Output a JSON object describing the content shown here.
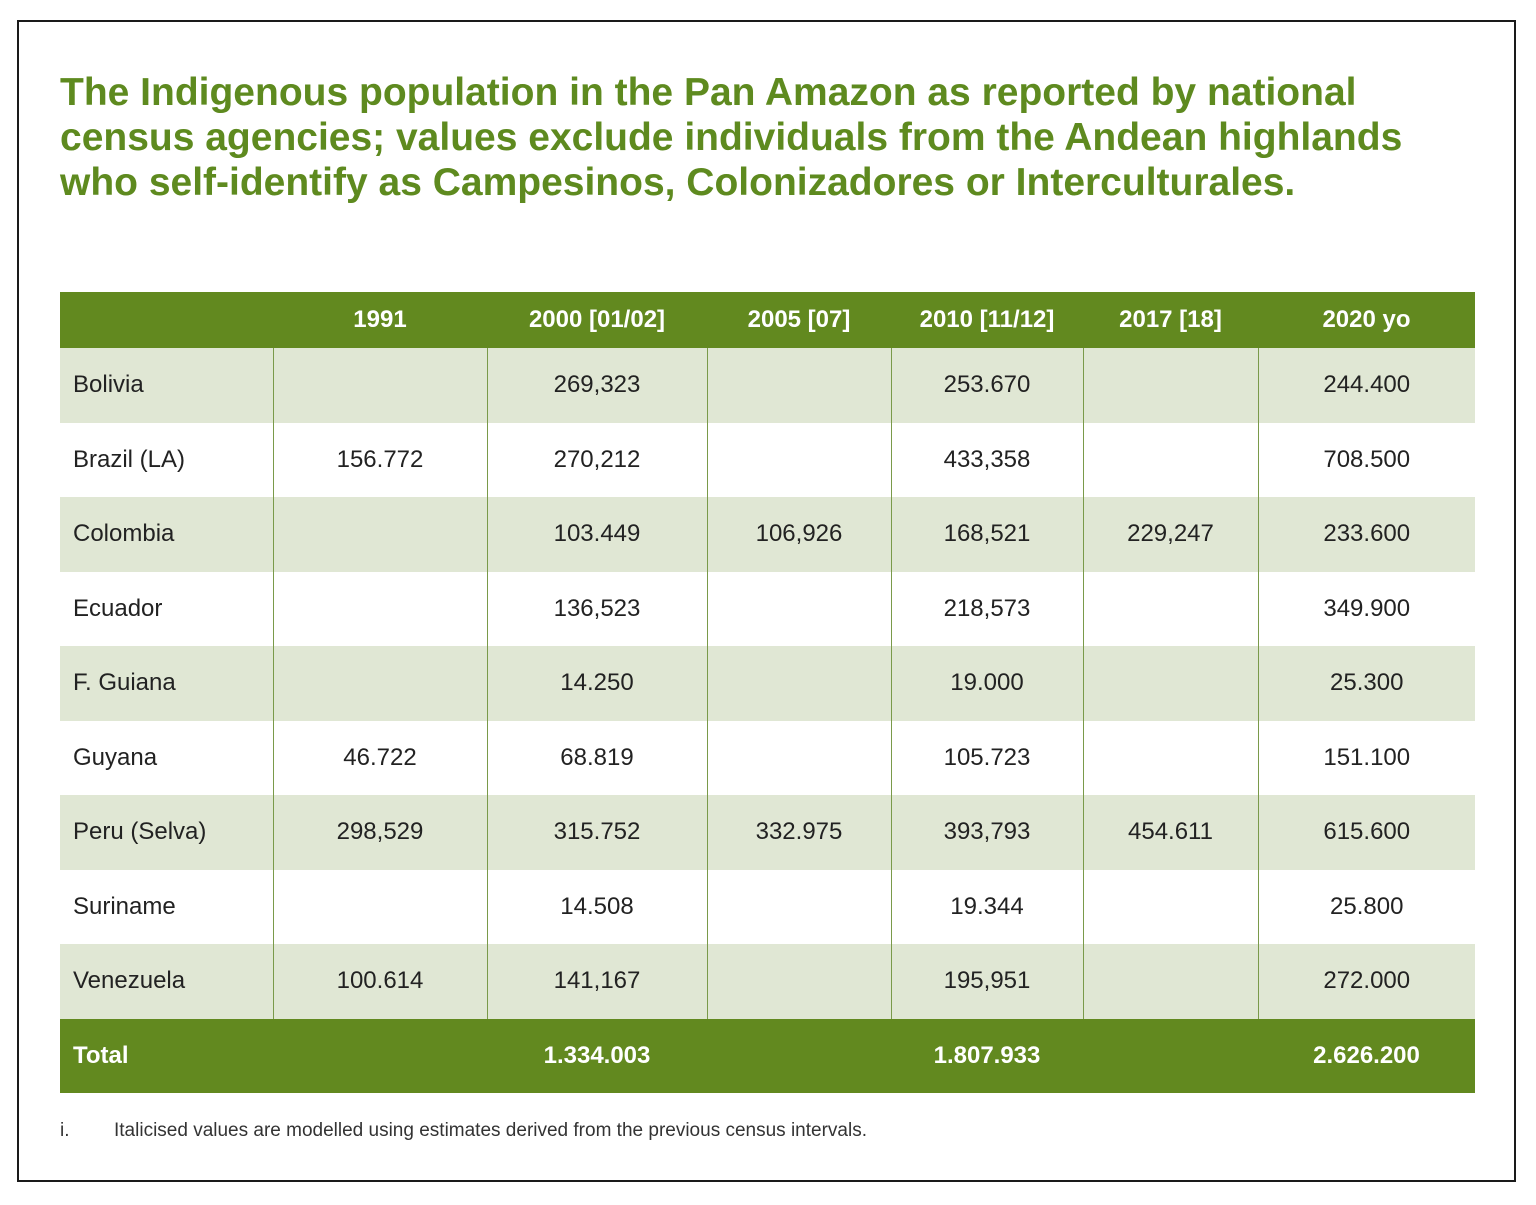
{
  "title": "The Indigenous population in the Pan Amazon as reported by national census agencies; values exclude individuals from the Andean highlands who self-identify as Campesinos, Colonizadores or Interculturales.",
  "table": {
    "headers": [
      "",
      "1991",
      "2000 [01/02]",
      "2005 [07]",
      "2010 [11/12]",
      "2017 [18]",
      "2020 yo"
    ],
    "rows": [
      [
        "Bolivia",
        "",
        "269,323",
        "",
        "253.670",
        "",
        "244.400"
      ],
      [
        "Brazil (LA)",
        "156.772",
        "270,212",
        "",
        "433,358",
        "",
        "708.500"
      ],
      [
        "Colombia",
        "",
        "103.449",
        "106,926",
        "168,521",
        "229,247",
        "233.600"
      ],
      [
        "Ecuador",
        "",
        "136,523",
        "",
        "218,573",
        "",
        "349.900"
      ],
      [
        "F. Guiana",
        "",
        "14.250",
        "",
        "19.000",
        "",
        "25.300"
      ],
      [
        "Guyana",
        "46.722",
        "68.819",
        "",
        "105.723",
        "",
        "151.100"
      ],
      [
        "Peru (Selva)",
        "298,529",
        "315.752",
        "332.975",
        "393,793",
        "454.611",
        "615.600"
      ],
      [
        "Suriname",
        "",
        "14.508",
        "",
        "19.344",
        "",
        "25.800"
      ],
      [
        "Venezuela",
        "100.614",
        "141,167",
        "",
        "195,951",
        "",
        "272.000"
      ]
    ],
    "total": [
      "Total",
      "",
      "1.334.003",
      "",
      "1.807.933",
      "",
      "2.626.200"
    ]
  },
  "footnote": {
    "marker": "i.",
    "text": "Italicised values are modelled using estimates derived from the previous census intervals."
  },
  "colors": {
    "accent": "#62891f",
    "title": "#5e8a1f",
    "row_alt": "#e0e7d4"
  }
}
